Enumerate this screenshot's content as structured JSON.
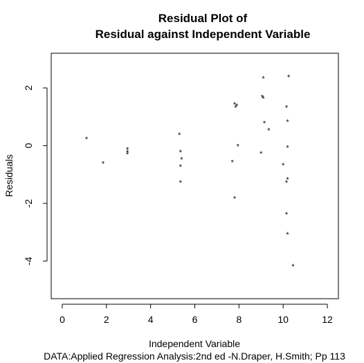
{
  "chart_data": {
    "type": "scatter",
    "title": [
      "Residual Plot of",
      "Residual against Independent Variable"
    ],
    "xlabel": "Independent Variable",
    "ylabel": "Residuals",
    "subtitle": "DATA:Applied Regression Analysis:2nd ed -N.Draper, H.Smith; Pp 113",
    "marker": "*",
    "xlim": [
      -0.5,
      12.5
    ],
    "ylim": [
      -5.3,
      3.2
    ],
    "xticks": [
      0,
      2,
      4,
      6,
      8,
      10,
      12
    ],
    "yticks": [
      -4,
      -2,
      0,
      2
    ],
    "xtick_labels": [
      "0",
      "2",
      "4",
      "6",
      "8",
      "10",
      "12"
    ],
    "ytick_labels": [
      "-4",
      "-2",
      "0",
      "2"
    ],
    "grid": false,
    "points": [
      {
        "x": 1.1,
        "y": 0.25
      },
      {
        "x": 1.85,
        "y": -0.6
      },
      {
        "x": 2.95,
        "y": -0.1
      },
      {
        "x": 2.95,
        "y": -0.2
      },
      {
        "x": 2.95,
        "y": -0.27
      },
      {
        "x": 5.3,
        "y": 0.4
      },
      {
        "x": 5.35,
        "y": -0.2
      },
      {
        "x": 5.4,
        "y": -0.45
      },
      {
        "x": 5.35,
        "y": -0.7
      },
      {
        "x": 5.35,
        "y": -1.25
      },
      {
        "x": 7.7,
        "y": -0.55
      },
      {
        "x": 7.8,
        "y": 1.45
      },
      {
        "x": 7.85,
        "y": 1.35
      },
      {
        "x": 7.9,
        "y": 1.4
      },
      {
        "x": 7.95,
        "y": 0.0
      },
      {
        "x": 7.8,
        "y": -1.8
      },
      {
        "x": 9.0,
        "y": -0.25
      },
      {
        "x": 9.05,
        "y": 1.7
      },
      {
        "x": 9.1,
        "y": 1.65
      },
      {
        "x": 9.1,
        "y": 2.35
      },
      {
        "x": 9.15,
        "y": 0.8
      },
      {
        "x": 9.35,
        "y": 0.55
      },
      {
        "x": 10.0,
        "y": -0.65
      },
      {
        "x": 10.15,
        "y": 1.35
      },
      {
        "x": 10.2,
        "y": 0.85
      },
      {
        "x": 10.2,
        "y": -0.05
      },
      {
        "x": 10.2,
        "y": -1.15
      },
      {
        "x": 10.15,
        "y": -1.25
      },
      {
        "x": 10.15,
        "y": -2.35
      },
      {
        "x": 10.2,
        "y": -3.05
      },
      {
        "x": 10.25,
        "y": 2.4
      },
      {
        "x": 10.45,
        "y": -4.15
      }
    ]
  }
}
